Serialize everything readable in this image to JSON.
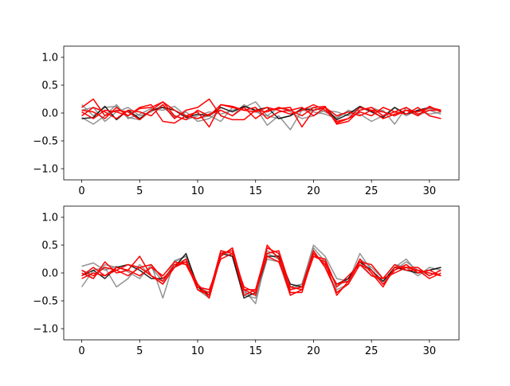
{
  "chart_data": [
    {
      "type": "line",
      "title": "",
      "xlabel": "",
      "ylabel": "",
      "xlim": [
        -1.55,
        32.55
      ],
      "ylim": [
        -1.2,
        1.2
      ],
      "xticks": [
        0,
        5,
        10,
        15,
        20,
        25,
        30
      ],
      "yticks": [
        -1.0,
        -0.5,
        0.0,
        0.5,
        1.0
      ],
      "xtick_labels": [
        "0",
        "5",
        "10",
        "15",
        "20",
        "25",
        "30"
      ],
      "ytick_labels": [
        "−1.0",
        "−0.5",
        "0.0",
        "0.5",
        "1.0"
      ],
      "x": [
        0,
        1,
        2,
        3,
        4,
        5,
        6,
        7,
        8,
        9,
        10,
        11,
        12,
        13,
        14,
        15,
        16,
        17,
        18,
        19,
        20,
        21,
        22,
        23,
        24,
        25,
        26,
        27,
        28,
        29,
        30,
        31
      ],
      "series": [
        {
          "color": "#808080",
          "values": [
            0.15,
            -0.05,
            0.1,
            0.12,
            -0.08,
            -0.12,
            0.05,
            0.1,
            -0.05,
            -0.12,
            -0.05,
            0.02,
            -0.02,
            0.05,
            0.1,
            0.2,
            -0.05,
            -0.1,
            -0.05,
            0.05,
            0.1,
            0.02,
            -0.08,
            0.02,
            0.05,
            0.1,
            0.02,
            -0.05,
            0.05,
            0.02,
            0.08,
            0.05
          ]
        },
        {
          "color": "#808080",
          "values": [
            -0.08,
            -0.2,
            -0.05,
            0.15,
            -0.1,
            -0.02,
            0.08,
            0.05,
            0.12,
            -0.05,
            -0.1,
            -0.05,
            -0.15,
            0.1,
            0.05,
            0.1,
            -0.22,
            -0.05,
            -0.3,
            0.05,
            0.02,
            -0.02,
            -0.1,
            0.05,
            -0.02,
            -0.15,
            -0.05,
            0.1,
            -0.05,
            0.05,
            -0.02,
            0.02
          ]
        },
        {
          "color": "#808080",
          "values": [
            0.05,
            0.1,
            -0.15,
            0.02,
            0.1,
            -0.05,
            0.02,
            0.15,
            -0.08,
            0.02,
            -0.15,
            -0.1,
            0.05,
            -0.05,
            0.15,
            0.02,
            -0.05,
            0.1,
            0.02,
            -0.1,
            -0.05,
            0.05,
            0.02,
            -0.05,
            0.1,
            0.02,
            0.05,
            -0.2,
            0.1,
            -0.05,
            0.05,
            -0.02
          ]
        },
        {
          "color": "#000000",
          "values": [
            -0.1,
            -0.08,
            0.12,
            -0.12,
            0.05,
            -0.1,
            0.05,
            0.1,
            0.05,
            -0.08,
            -0.02,
            -0.05,
            0.1,
            0.02,
            0.12,
            0.05,
            0.1,
            -0.1,
            -0.05,
            0.08,
            0.05,
            0.1,
            -0.12,
            -0.02,
            0.12,
            0.02,
            -0.08,
            0.1,
            -0.02,
            0.05,
            0.1,
            0.05
          ]
        },
        {
          "color": "#ff0000",
          "values": [
            0.1,
            0.25,
            -0.05,
            0.05,
            0.02,
            -0.12,
            0.05,
            0.2,
            0.05,
            -0.05,
            0.02,
            -0.25,
            0.15,
            0.1,
            0.05,
            0.02,
            0.1,
            0.05,
            -0.02,
            0.05,
            0.15,
            0.05,
            -0.15,
            -0.1,
            0.1,
            0.05,
            0.02,
            -0.05,
            0.05,
            0.02,
            0.1,
            0.05
          ]
        },
        {
          "color": "#ff0000",
          "values": [
            -0.05,
            0.1,
            0.02,
            -0.1,
            0.05,
            0.02,
            -0.05,
            0.15,
            -0.1,
            0.05,
            0.1,
            0.25,
            -0.05,
            -0.12,
            -0.12,
            0.05,
            0.02,
            0.1,
            0.05,
            -0.05,
            0.1,
            0.12,
            -0.2,
            -0.15,
            0.05,
            0.1,
            -0.05,
            0.02,
            -0.02,
            0.1,
            -0.05,
            -0.1
          ]
        },
        {
          "color": "#ff0000",
          "values": [
            0.02,
            -0.1,
            0.05,
            0.02,
            -0.05,
            0.08,
            0.1,
            0.2,
            -0.05,
            -0.12,
            0.05,
            -0.05,
            0.15,
            0.12,
            0.05,
            0.1,
            -0.1,
            0.02,
            0.05,
            0.1,
            -0.05,
            0.1,
            -0.05,
            0.02,
            -0.05,
            0.05,
            -0.1,
            -0.02,
            0.05,
            -0.05,
            0.12,
            0.02
          ]
        },
        {
          "color": "#ff0000",
          "values": [
            0.05,
            0.02,
            -0.1,
            0.1,
            -0.05,
            0.1,
            0.15,
            -0.15,
            -0.18,
            -0.05,
            -0.1,
            -0.02,
            0.05,
            -0.05,
            0.1,
            -0.1,
            0.05,
            0.08,
            0.1,
            -0.25,
            0.05,
            0.1,
            -0.18,
            -0.1,
            0.02,
            -0.05,
            0.1,
            0.02,
            0.1,
            -0.02,
            0.05,
            0.05
          ]
        }
      ]
    },
    {
      "type": "line",
      "title": "",
      "xlabel": "",
      "ylabel": "",
      "xlim": [
        -1.55,
        32.55
      ],
      "ylim": [
        -1.2,
        1.2
      ],
      "xticks": [
        0,
        5,
        10,
        15,
        20,
        25,
        30
      ],
      "yticks": [
        -1.0,
        -0.5,
        0.0,
        0.5,
        1.0
      ],
      "xtick_labels": [
        "0",
        "5",
        "10",
        "15",
        "20",
        "25",
        "30"
      ],
      "ytick_labels": [
        "−1.0",
        "−0.5",
        "0.0",
        "0.5",
        "1.0"
      ],
      "x": [
        0,
        1,
        2,
        3,
        4,
        5,
        6,
        7,
        8,
        9,
        10,
        11,
        12,
        13,
        14,
        15,
        16,
        17,
        18,
        19,
        20,
        21,
        22,
        23,
        24,
        25,
        26,
        27,
        28,
        29,
        30,
        31
      ],
      "series": [
        {
          "color": "#808080",
          "values": [
            0.12,
            0.18,
            0.05,
            0.12,
            0.02,
            -0.1,
            0.15,
            -0.45,
            0.22,
            0.3,
            -0.2,
            -0.4,
            0.35,
            0.4,
            -0.3,
            -0.55,
            0.35,
            0.25,
            -0.3,
            -0.2,
            0.5,
            0.3,
            -0.1,
            -0.15,
            0.35,
            0.05,
            -0.2,
            0.1,
            0.25,
            0.0,
            0.05,
            0.1
          ]
        },
        {
          "color": "#808080",
          "values": [
            -0.25,
            0.05,
            0.1,
            -0.25,
            -0.1,
            0.15,
            -0.05,
            -0.2,
            0.15,
            0.25,
            -0.25,
            -0.35,
            0.4,
            0.3,
            -0.4,
            -0.45,
            0.25,
            0.2,
            -0.4,
            -0.3,
            0.45,
            0.2,
            -0.25,
            -0.1,
            0.2,
            -0.05,
            -0.15,
            0.05,
            0.2,
            0.05,
            -0.05,
            0.05
          ]
        },
        {
          "color": "#808080",
          "values": [
            0.05,
            -0.1,
            0.15,
            0.1,
            0.05,
            -0.05,
            0.1,
            -0.15,
            0.2,
            0.3,
            -0.3,
            -0.45,
            0.3,
            0.45,
            -0.35,
            -0.4,
            0.4,
            0.3,
            -0.25,
            -0.2,
            0.4,
            0.1,
            -0.3,
            -0.2,
            0.25,
            0.1,
            -0.1,
            0.15,
            0.1,
            -0.05,
            0.1,
            0.05
          ]
        },
        {
          "color": "#000000",
          "values": [
            -0.05,
            0.05,
            -0.1,
            0.1,
            0.15,
            0.05,
            -0.1,
            -0.1,
            0.1,
            0.35,
            -0.25,
            -0.4,
            0.35,
            0.3,
            -0.45,
            -0.35,
            0.3,
            0.3,
            -0.2,
            -0.25,
            0.35,
            0.15,
            -0.2,
            -0.1,
            0.2,
            0.05,
            -0.15,
            0.1,
            0.05,
            0.0,
            0.05,
            0.1
          ]
        },
        {
          "color": "#ff0000",
          "values": [
            0.0,
            -0.1,
            0.2,
            0.0,
            0.05,
            0.3,
            -0.05,
            -0.2,
            0.1,
            0.25,
            -0.3,
            -0.4,
            0.4,
            0.35,
            -0.3,
            -0.4,
            0.5,
            0.25,
            -0.4,
            -0.3,
            0.3,
            0.2,
            -0.4,
            -0.15,
            0.25,
            0.0,
            -0.25,
            0.1,
            0.1,
            0.05,
            -0.1,
            0.0
          ]
        },
        {
          "color": "#ff0000",
          "values": [
            -0.05,
            0.1,
            -0.05,
            0.05,
            0.15,
            0.1,
            -0.05,
            -0.15,
            0.15,
            0.2,
            -0.2,
            -0.45,
            0.3,
            0.45,
            -0.3,
            -0.3,
            0.45,
            0.35,
            -0.35,
            -0.35,
            0.35,
            0.15,
            -0.2,
            -0.15,
            0.2,
            0.15,
            -0.1,
            0.15,
            0.05,
            0.05,
            0.0,
            -0.05
          ]
        },
        {
          "color": "#ff0000",
          "values": [
            0.05,
            -0.05,
            0.1,
            0.05,
            -0.05,
            0.1,
            0.15,
            -0.1,
            0.1,
            0.2,
            -0.3,
            -0.35,
            0.35,
            0.4,
            -0.4,
            -0.3,
            0.3,
            0.2,
            -0.3,
            -0.25,
            0.4,
            0.1,
            -0.35,
            -0.2,
            0.15,
            0.05,
            -0.2,
            0.05,
            0.15,
            0.0,
            0.05,
            -0.05
          ]
        },
        {
          "color": "#ff0000",
          "values": [
            -0.1,
            0.0,
            -0.05,
            0.1,
            0.05,
            -0.05,
            0.1,
            -0.05,
            0.2,
            0.15,
            -0.25,
            -0.3,
            0.25,
            0.35,
            -0.25,
            -0.35,
            0.35,
            0.4,
            -0.25,
            -0.3,
            0.3,
            0.25,
            -0.25,
            -0.05,
            0.15,
            -0.05,
            -0.1,
            0.0,
            0.1,
            0.1,
            -0.05,
            0.05
          ]
        }
      ]
    }
  ]
}
